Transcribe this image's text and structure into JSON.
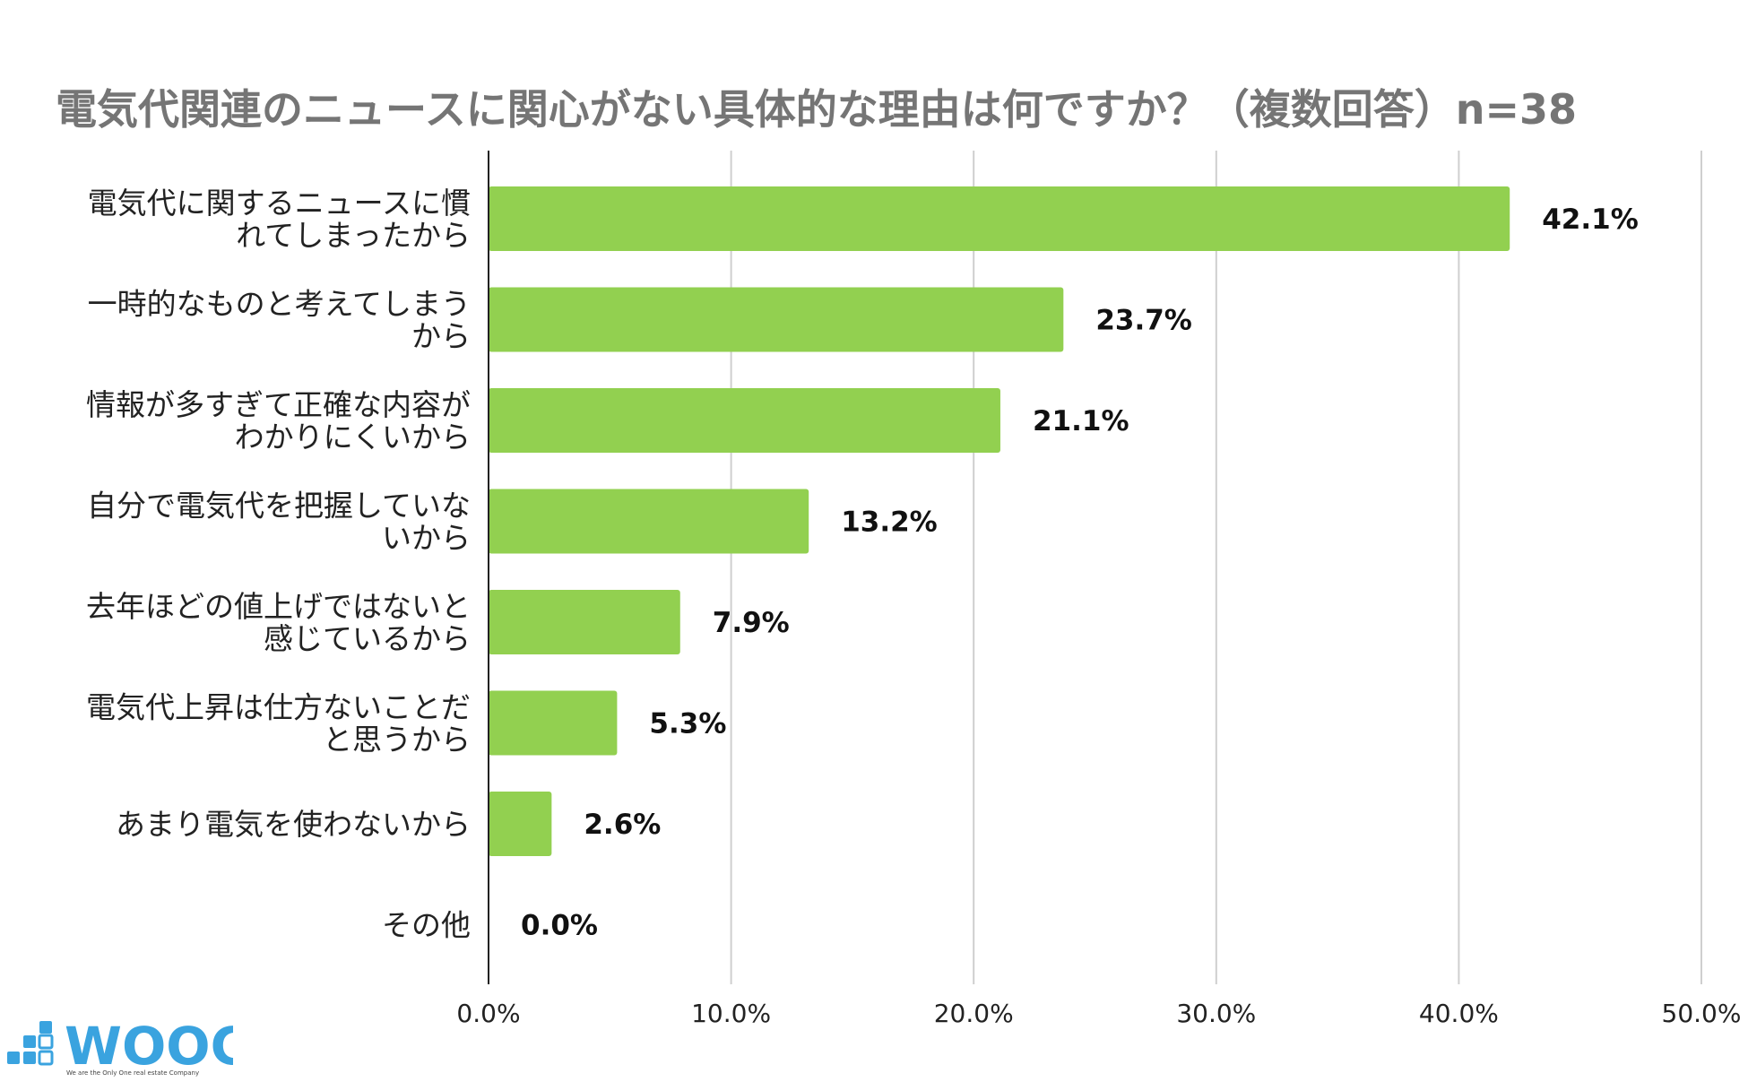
{
  "chart_data": {
    "type": "bar",
    "orientation": "horizontal",
    "title": "電気代関連のニュースに関心がない具体的な理由は何ですか？（複数回答）n=38",
    "categories": [
      [
        "電気代に関するニュースに慣",
        "れてしまったから"
      ],
      [
        "一時的なものと考えてしまう",
        "から"
      ],
      [
        "情報が多すぎて正確な内容が",
        "わかりにくいから"
      ],
      [
        "自分で電気代を把握していな",
        "いから"
      ],
      [
        "去年ほどの値上げではないと",
        "感じているから"
      ],
      [
        "電気代上昇は仕方ないことだ",
        "と思うから"
      ],
      [
        "あまり電気を使わないから"
      ],
      [
        "その他"
      ]
    ],
    "values": [
      42.1,
      23.7,
      21.1,
      13.2,
      7.9,
      5.3,
      2.6,
      0.0
    ],
    "value_labels": [
      "42.1%",
      "23.7%",
      "21.1%",
      "13.2%",
      "7.9%",
      "5.3%",
      "2.6%",
      "0.0%"
    ],
    "xlim": [
      0,
      50
    ],
    "xticks": [
      0,
      10,
      20,
      30,
      40,
      50
    ],
    "xtick_labels": [
      "0.0%",
      "10.0%",
      "20.0%",
      "30.0%",
      "40.0%",
      "50.0%"
    ],
    "grid": "vertical",
    "bar_color": "#92d050"
  },
  "logo": {
    "text": "WOOC",
    "tagline": "We are the Only One real estate Company",
    "color": "#3aa3df"
  }
}
